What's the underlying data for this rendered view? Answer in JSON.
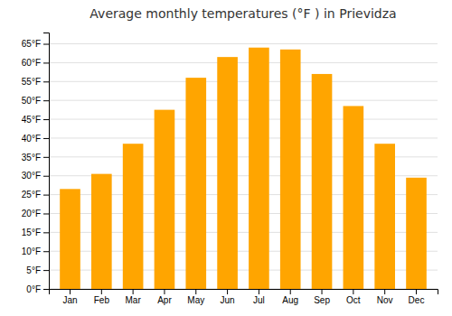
{
  "chart_data": {
    "type": "bar",
    "title": "Average monthly temperatures (°F ) in Prievidza",
    "categories": [
      "Jan",
      "Feb",
      "Mar",
      "Apr",
      "May",
      "Jun",
      "Jul",
      "Aug",
      "Sep",
      "Oct",
      "Nov",
      "Dec"
    ],
    "values": [
      26.5,
      30.5,
      38.5,
      47.5,
      56.0,
      61.5,
      64.0,
      63.5,
      57.0,
      48.5,
      38.5,
      29.5
    ],
    "color": "#FFA500",
    "ylim": [
      0,
      68
    ],
    "yticks": [
      {
        "value": 0,
        "label": "0°F"
      },
      {
        "value": 5,
        "label": "5°F"
      },
      {
        "value": 10,
        "label": "10°F"
      },
      {
        "value": 15,
        "label": "15°F"
      },
      {
        "value": 20,
        "label": "20°F"
      },
      {
        "value": 25,
        "label": "25°F"
      },
      {
        "value": 30,
        "label": "30°F"
      },
      {
        "value": 35,
        "label": "35°F"
      },
      {
        "value": 40,
        "label": "40°F"
      },
      {
        "value": 45,
        "label": "45°F"
      },
      {
        "value": 50,
        "label": "50°F"
      },
      {
        "value": 55,
        "label": "55°F"
      },
      {
        "value": 60,
        "label": "60°F"
      },
      {
        "value": 65,
        "label": "65°F"
      }
    ],
    "grid": true
  }
}
